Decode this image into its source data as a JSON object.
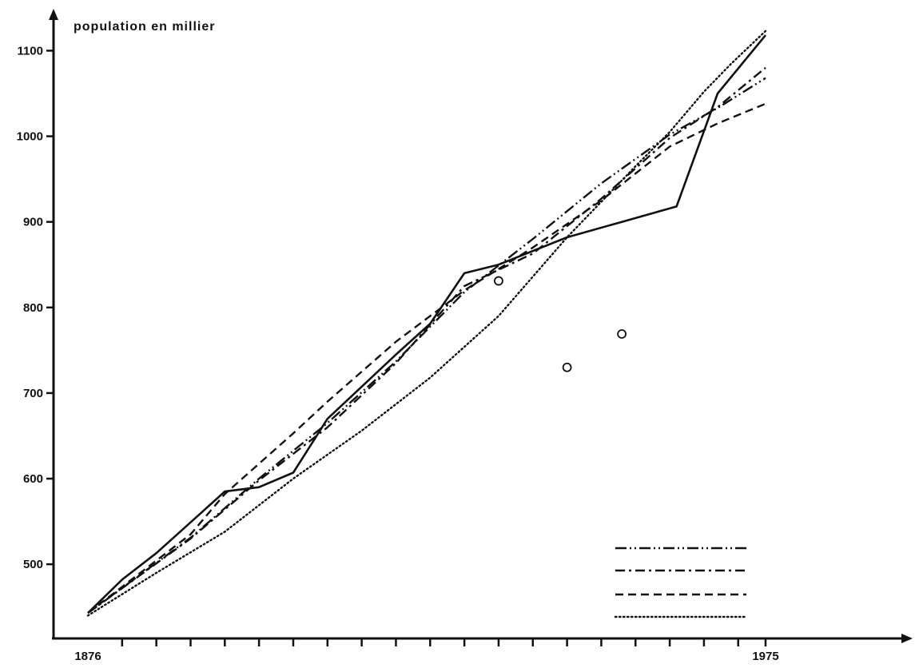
{
  "chart_data": {
    "type": "line",
    "title": "",
    "ylabel": "population en millier",
    "xlabel": "",
    "x_tick_labels": [
      "1876",
      "1975"
    ],
    "y_tick_labels": [
      "500",
      "600",
      "700",
      "800",
      "900",
      "1000",
      "1100"
    ],
    "xlim": [
      1876,
      1975
    ],
    "ylim": [
      418,
      1120
    ],
    "grid": false,
    "legend_position": "bottom-right",
    "series": [
      {
        "style": "solid",
        "x": [
          1876,
          1881,
          1886,
          1891,
          1896,
          1901,
          1906,
          1911,
          1921,
          1926,
          1931,
          1936,
          1946,
          1954,
          1962,
          1968,
          1975
        ],
        "y": [
          443,
          482,
          513,
          549,
          585,
          590,
          607,
          670,
          745,
          781,
          840,
          850,
          882,
          900,
          918,
          1050,
          1118
        ]
      },
      {
        "style": "dash-dot-dot",
        "x": [
          1876,
          1891,
          1901,
          1911,
          1921,
          1931,
          1941,
          1951,
          1961,
          1968,
          1975
        ],
        "y": [
          443,
          531,
          600,
          665,
          737,
          818,
          880,
          945,
          1002,
          1033,
          1068
        ]
      },
      {
        "style": "dash-dot",
        "x": [
          1876,
          1891,
          1901,
          1911,
          1921,
          1926,
          1931,
          1941,
          1951,
          1961,
          1968,
          1975
        ],
        "y": [
          443,
          530,
          598,
          660,
          735,
          780,
          825,
          863,
          927,
          998,
          1034,
          1080
        ]
      },
      {
        "style": "dashed",
        "x": [
          1876,
          1891,
          1896,
          1906,
          1911,
          1921,
          1931,
          1941,
          1951,
          1961,
          1968,
          1975
        ],
        "y": [
          443,
          535,
          582,
          653,
          690,
          760,
          820,
          870,
          925,
          988,
          1015,
          1038
        ]
      },
      {
        "style": "dotted",
        "x": [
          1876,
          1886,
          1896,
          1906,
          1916,
          1926,
          1936,
          1946,
          1956,
          1961,
          1966,
          1970,
          1975
        ],
        "y": [
          440,
          490,
          538,
          600,
          656,
          718,
          790,
          882,
          965,
          1005,
          1052,
          1085,
          1123
        ]
      }
    ],
    "observed_points": [
      {
        "x": 1936,
        "y": 831
      },
      {
        "x": 1946,
        "y": 730
      },
      {
        "x": 1954,
        "y": 769
      }
    ]
  }
}
